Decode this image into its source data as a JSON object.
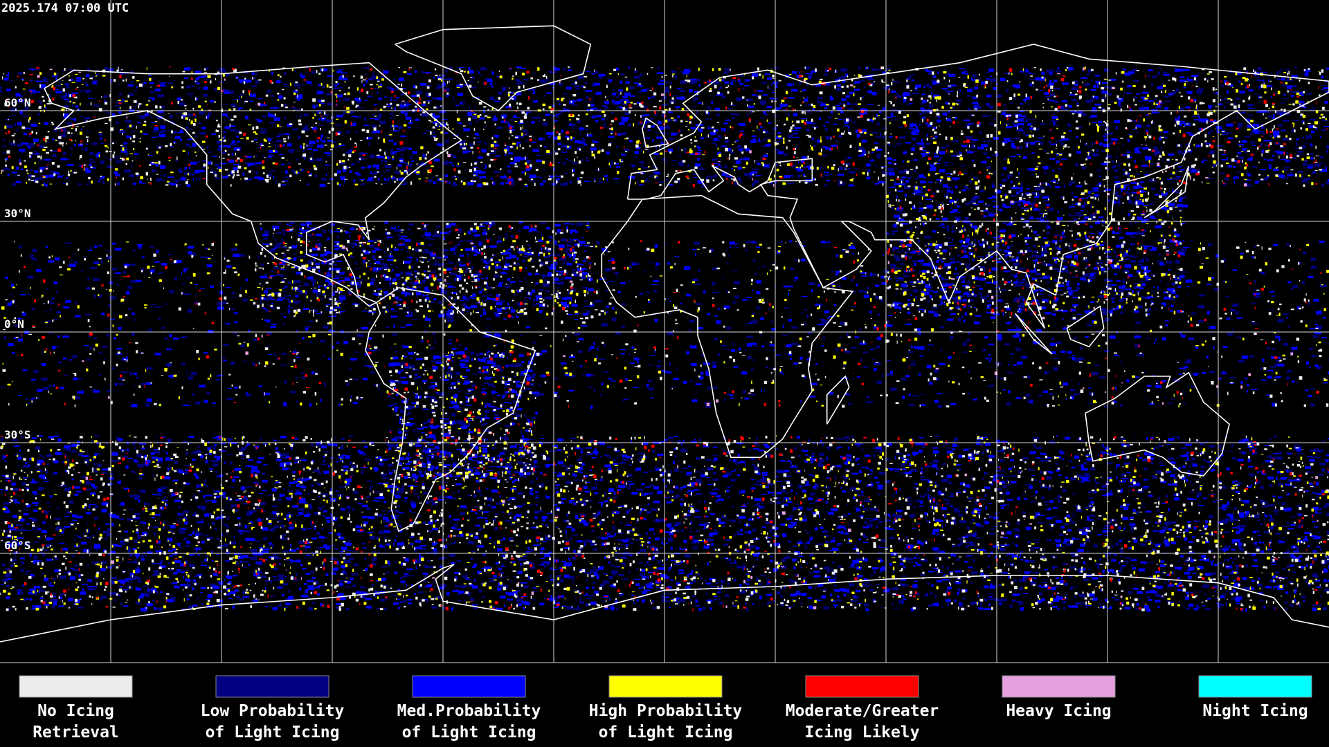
{
  "header": {
    "timestamp": "2025.174 07:00 UTC"
  },
  "map": {
    "latitude_labels": [
      "60°N",
      "30°N",
      "0°N",
      "30°S",
      "60°S"
    ]
  },
  "legend": {
    "items": [
      {
        "label": [
          "No Icing",
          "Retrieval"
        ],
        "color": "#ececec"
      },
      {
        "label": [
          "Low Probability",
          "of Light Icing"
        ],
        "color": "#000080"
      },
      {
        "label": [
          "Med.Probability",
          "of Light Icing"
        ],
        "color": "#0000ff"
      },
      {
        "label": [
          "High Probability",
          "of Light Icing"
        ],
        "color": "#ffff00"
      },
      {
        "label": [
          "Moderate/Greater",
          "Icing Likely"
        ],
        "color": "#ff0000"
      },
      {
        "label": [
          "Heavy Icing"
        ],
        "color": "#e6a0e0"
      },
      {
        "label": [
          "Night Icing"
        ],
        "color": "#00ffff"
      }
    ]
  }
}
